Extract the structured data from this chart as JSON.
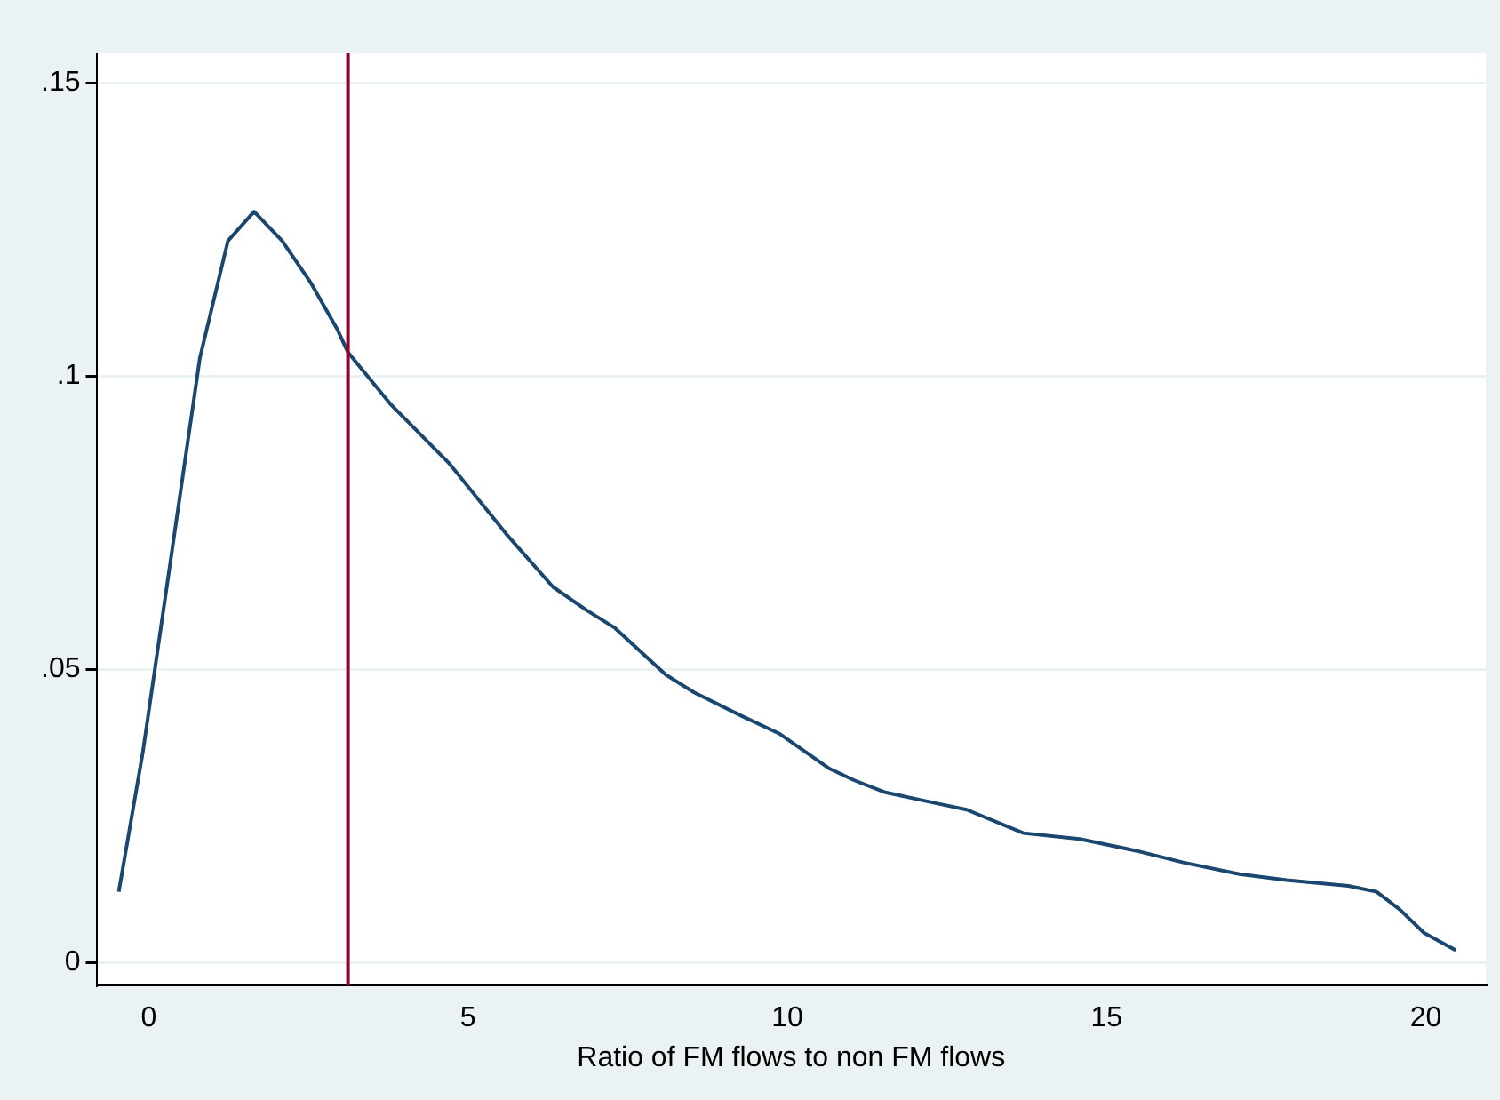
{
  "chart_data": {
    "type": "line",
    "xlabel": "Ratio of FM flows to non FM flows",
    "x": [
      -0.47,
      -0.09,
      0.8,
      1.24,
      1.65,
      2.09,
      2.53,
      2.95,
      3.12,
      3.8,
      4.71,
      5.6,
      6.33,
      6.86,
      7.3,
      8.1,
      8.54,
      9.28,
      9.87,
      10.66,
      11.05,
      11.52,
      12.37,
      12.81,
      13.7,
      14.58,
      15.46,
      16.2,
      17.08,
      17.82,
      18.79,
      19.23,
      19.59,
      19.97,
      20.47
    ],
    "series": [
      {
        "color": "#1a476f",
        "values": [
          0.012,
          0.036,
          0.103,
          0.123,
          0.128,
          0.123,
          0.116,
          0.108,
          0.104,
          0.095,
          0.085,
          0.073,
          0.064,
          0.06,
          0.057,
          0.049,
          0.046,
          0.042,
          0.039,
          0.033,
          0.031,
          0.029,
          0.027,
          0.026,
          0.022,
          0.021,
          0.019,
          0.017,
          0.015,
          0.014,
          0.013,
          0.012,
          0.009,
          0.005,
          0.002
        ]
      }
    ],
    "xlim": [
      -0.82,
      20.94
    ],
    "xticks": [
      0,
      5,
      10,
      15,
      20
    ],
    "ylim": [
      -0.004,
      0.155
    ],
    "yticks": [
      {
        "value": 0,
        "label": "0"
      },
      {
        "value": 0.05,
        "label": ".05"
      },
      {
        "value": 0.1,
        "label": ".1"
      },
      {
        "value": 0.15,
        "label": ".15"
      }
    ],
    "ref_lines": [
      {
        "axis": "x",
        "value": 3.12,
        "color": "#90002d"
      }
    ],
    "grid": "y",
    "legend": false,
    "marker": "none",
    "line_style": "solid"
  }
}
